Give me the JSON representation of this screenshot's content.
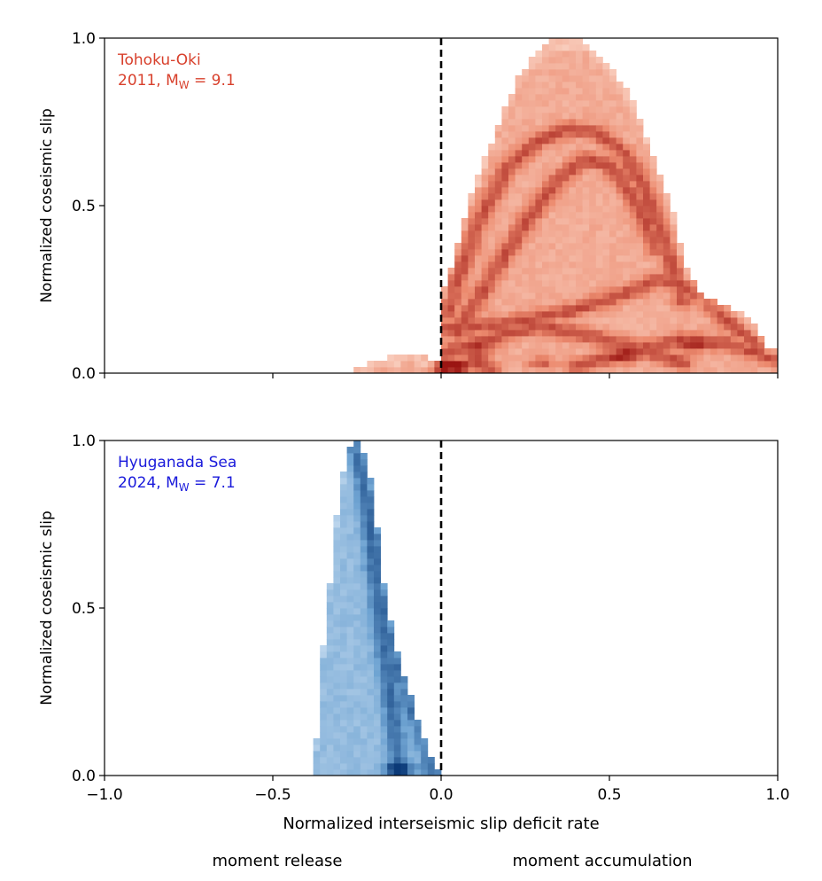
{
  "figure": {
    "xlabel": "Normalized interseismic slip deficit rate",
    "left_note": "moment release",
    "right_note": "moment accumulation"
  },
  "chart_data": [
    {
      "type": "heatmap",
      "ylabel": "Normalized coseismic slip",
      "xlim": [
        -1.0,
        1.0
      ],
      "ylim": [
        0.0,
        1.0
      ],
      "xticks": [
        -1.0,
        -0.5,
        0.0,
        0.5,
        1.0
      ],
      "xtick_labels": [
        "−1.0",
        "−0.5",
        "0.0",
        "0.5",
        "1.0"
      ],
      "x_tick_labels_shown": false,
      "yticks": [
        0.0,
        0.5,
        1.0
      ],
      "ytick_labels": [
        "0.0",
        "0.5",
        "1.0"
      ],
      "reference_line": {
        "x": 0.0,
        "style": "dashed",
        "color": "#000000"
      },
      "annotation": {
        "line1": "Tohoku-Oki",
        "line2_prefix": "2011, M",
        "subscript": "W",
        "line2_suffix": " = 9.1"
      },
      "colormap": {
        "light": "#fde4d8",
        "mid": "#ec8a6e",
        "dark": "#9b1512"
      },
      "annotation_color": "#d8402c",
      "envelope": {
        "x": [
          -0.25,
          -0.22,
          -0.2,
          -0.15,
          -0.1,
          -0.05,
          0.0,
          0.0,
          0.02,
          0.05,
          0.08,
          0.1,
          0.13,
          0.16,
          0.2,
          0.24,
          0.28,
          0.32,
          0.35,
          0.38,
          0.4,
          0.43,
          0.46,
          0.5,
          0.55,
          0.6,
          0.65,
          0.7,
          0.72,
          0.76,
          0.8,
          0.85,
          0.9,
          0.94,
          0.96,
          0.98,
          1.0
        ],
        "y": [
          0.01,
          0.03,
          0.04,
          0.05,
          0.06,
          0.05,
          0.04,
          0.21,
          0.29,
          0.39,
          0.5,
          0.56,
          0.64,
          0.72,
          0.82,
          0.9,
          0.95,
          0.99,
          1.0,
          1.0,
          1.0,
          0.99,
          0.96,
          0.92,
          0.85,
          0.74,
          0.6,
          0.45,
          0.33,
          0.25,
          0.22,
          0.2,
          0.17,
          0.13,
          0.09,
          0.07,
          0.07
        ]
      },
      "ridges": [
        {
          "x": [
            0.02,
            0.1,
            0.2,
            0.3,
            0.38,
            0.46,
            0.54,
            0.6,
            0.66,
            0.72
          ],
          "y": [
            0.18,
            0.43,
            0.62,
            0.7,
            0.73,
            0.72,
            0.66,
            0.56,
            0.4,
            0.22
          ]
        },
        {
          "x": [
            0.05,
            0.15,
            0.25,
            0.35,
            0.43,
            0.5,
            0.57,
            0.64
          ],
          "y": [
            0.12,
            0.29,
            0.45,
            0.58,
            0.64,
            0.62,
            0.53,
            0.37
          ]
        },
        {
          "x": [
            0.0,
            0.2,
            0.4,
            0.55,
            0.65,
            0.75,
            0.85,
            0.95
          ],
          "y": [
            0.13,
            0.15,
            0.19,
            0.24,
            0.28,
            0.25,
            0.16,
            0.08
          ]
        },
        {
          "x": [
            0.0,
            0.1,
            0.2,
            0.3,
            0.45,
            0.6,
            0.72
          ],
          "y": [
            0.06,
            0.09,
            0.12,
            0.14,
            0.11,
            0.07,
            0.03
          ]
        },
        {
          "x": [
            0.4,
            0.55,
            0.7,
            0.85,
            1.0
          ],
          "y": [
            0.02,
            0.06,
            0.1,
            0.09,
            0.04
          ]
        },
        {
          "x": [
            0.0,
            0.02,
            0.06,
            0.1,
            0.15
          ],
          "y": [
            0.01,
            0.03,
            0.02,
            0.04,
            0.01
          ]
        }
      ],
      "hotspots": [
        {
          "x": 0.03,
          "y": 0.02,
          "weight": 1.0
        },
        {
          "x": 0.3,
          "y": 0.03,
          "weight": 0.8
        },
        {
          "x": 0.12,
          "y": 0.07,
          "weight": 0.7
        },
        {
          "x": 0.55,
          "y": 0.05,
          "weight": 0.6
        },
        {
          "x": 0.75,
          "y": 0.08,
          "weight": 0.6
        }
      ]
    },
    {
      "type": "heatmap",
      "ylabel": "Normalized coseismic slip",
      "xlim": [
        -1.0,
        1.0
      ],
      "ylim": [
        0.0,
        1.0
      ],
      "xticks": [
        -1.0,
        -0.5,
        0.0,
        0.5,
        1.0
      ],
      "xtick_labels": [
        "−1.0",
        "−0.5",
        "0.0",
        "0.5",
        "1.0"
      ],
      "x_tick_labels_shown": true,
      "yticks": [
        0.0,
        0.5,
        1.0
      ],
      "ytick_labels": [
        "0.0",
        "0.5",
        "1.0"
      ],
      "reference_line": {
        "x": 0.0,
        "style": "dashed",
        "color": "#000000"
      },
      "annotation": {
        "line1": "Hyuganada Sea",
        "line2_prefix": "2024, M",
        "subscript": "W",
        "line2_suffix": " = 7.1"
      },
      "colormap": {
        "light": "#d6e6f5",
        "mid": "#6ea3d2",
        "dark": "#0b3a78"
      },
      "annotation_color": "#1a1adb",
      "envelope": {
        "x": [
          -0.375,
          -0.37,
          -0.36,
          -0.34,
          -0.32,
          -0.3,
          -0.28,
          -0.26,
          -0.24,
          -0.22,
          -0.2,
          -0.18,
          -0.16,
          -0.14,
          -0.12,
          -0.1,
          -0.08,
          -0.06,
          -0.04,
          -0.02,
          0.0
        ],
        "y": [
          0.0,
          0.11,
          0.3,
          0.47,
          0.69,
          0.85,
          0.95,
          1.0,
          0.99,
          0.94,
          0.84,
          0.66,
          0.5,
          0.41,
          0.32,
          0.27,
          0.2,
          0.14,
          0.08,
          0.03,
          0.0
        ]
      },
      "ridges": [
        {
          "x": [
            -0.26,
            -0.245,
            -0.23,
            -0.215,
            -0.2,
            -0.185,
            -0.17,
            -0.155,
            -0.14,
            -0.125
          ],
          "y": [
            0.97,
            0.95,
            0.89,
            0.79,
            0.66,
            0.53,
            0.41,
            0.29,
            0.16,
            0.0
          ]
        },
        {
          "x": [
            -0.2,
            -0.16,
            -0.12,
            -0.08,
            -0.04,
            -0.01
          ],
          "y": [
            0.62,
            0.42,
            0.3,
            0.19,
            0.08,
            0.01
          ]
        },
        {
          "x": [
            -0.25,
            -0.235,
            -0.22,
            -0.205,
            -0.19,
            -0.175,
            -0.16,
            -0.145,
            -0.13
          ],
          "y": [
            0.99,
            0.93,
            0.83,
            0.7,
            0.55,
            0.43,
            0.3,
            0.19,
            0.08
          ]
        }
      ],
      "hotspots": [
        {
          "x": -0.13,
          "y": 0.02,
          "weight": 1.0
        },
        {
          "x": -0.05,
          "y": 0.02,
          "weight": 0.5
        }
      ]
    }
  ]
}
